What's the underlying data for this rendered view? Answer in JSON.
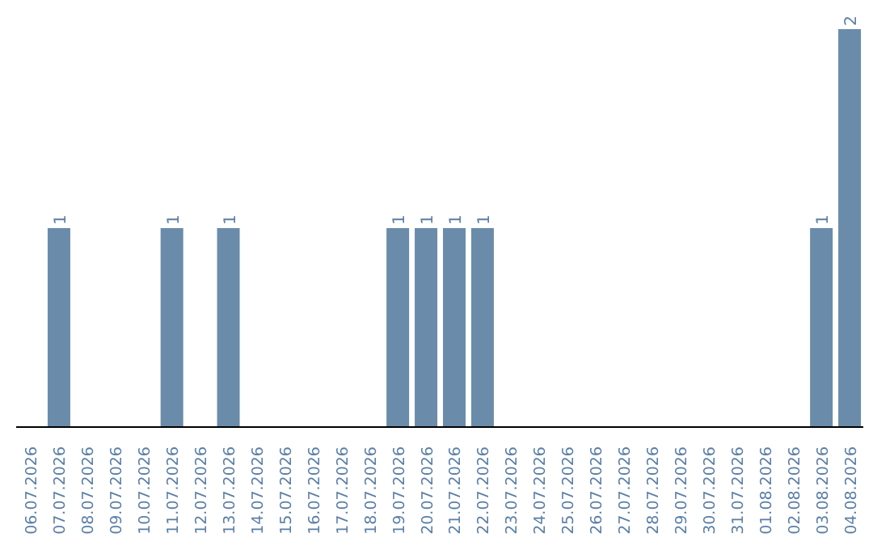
{
  "chart_data": {
    "type": "bar",
    "categories": [
      "06.07.2026",
      "07.07.2026",
      "08.07.2026",
      "09.07.2026",
      "10.07.2026",
      "11.07.2026",
      "12.07.2026",
      "13.07.2026",
      "14.07.2026",
      "15.07.2026",
      "16.07.2026",
      "17.07.2026",
      "18.07.2026",
      "19.07.2026",
      "20.07.2026",
      "21.07.2026",
      "22.07.2026",
      "23.07.2026",
      "24.07.2026",
      "25.07.2026",
      "26.07.2026",
      "27.07.2026",
      "28.07.2026",
      "29.07.2026",
      "30.07.2026",
      "31.07.2026",
      "01.08.2026",
      "02.08.2026",
      "03.08.2026",
      "04.08.2026"
    ],
    "values": [
      0,
      1,
      0,
      0,
      0,
      1,
      0,
      1,
      0,
      0,
      0,
      0,
      0,
      1,
      1,
      1,
      1,
      0,
      0,
      0,
      0,
      0,
      0,
      0,
      0,
      0,
      0,
      0,
      1,
      2
    ],
    "value_labels": [
      null,
      "1",
      null,
      null,
      null,
      "1",
      null,
      "1",
      null,
      null,
      null,
      null,
      null,
      "1",
      "1",
      "1",
      "1",
      null,
      null,
      null,
      null,
      null,
      null,
      null,
      null,
      null,
      null,
      null,
      "1",
      "2"
    ],
    "color": "#6a8caa",
    "grid": false,
    "legend": false
  }
}
